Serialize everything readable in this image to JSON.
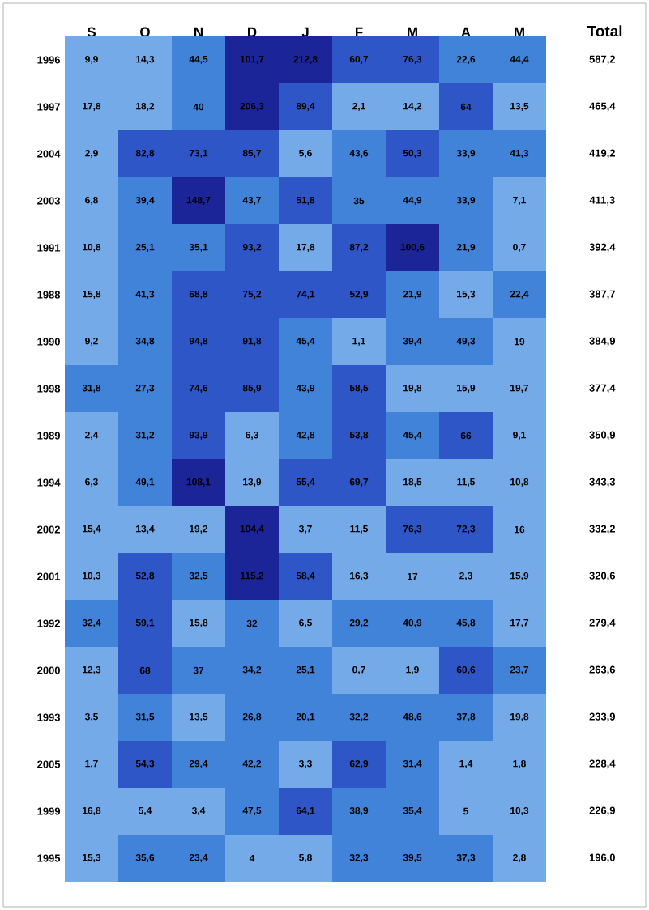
{
  "chart_data": {
    "type": "heatmap",
    "y2label": "Total",
    "categories": [
      "S",
      "O",
      "N",
      "D",
      "J",
      "F",
      "M",
      "A",
      "M"
    ],
    "y_categories": [
      "1996",
      "1997",
      "2004",
      "2003",
      "1991",
      "1988",
      "1990",
      "1998",
      "1989",
      "1994",
      "2002",
      "2001",
      "1992",
      "2000",
      "1993",
      "2005",
      "1999",
      "1995"
    ],
    "y2_categories": [
      "587,2",
      "465,4",
      "419,2",
      "411,3",
      "392,4",
      "387,7",
      "384,9",
      "377,4",
      "350,9",
      "343,3",
      "332,2",
      "320,6",
      "279,4",
      "263,6",
      "233,9",
      "228,4",
      "226,9",
      "196,0"
    ],
    "cells": [
      [
        9.9,
        14.3,
        44.5,
        101.7,
        212.8,
        60.7,
        76.3,
        22.6,
        44.4
      ],
      [
        17.8,
        18.2,
        40,
        206.3,
        89.4,
        2.1,
        14.2,
        64,
        13.5
      ],
      [
        2.9,
        82.8,
        73.1,
        85.7,
        5.6,
        43.6,
        50.3,
        33.9,
        41.3
      ],
      [
        6.8,
        39.4,
        148.7,
        43.7,
        51.8,
        35,
        44.9,
        33.9,
        7.1
      ],
      [
        10.8,
        25.1,
        35.1,
        93.2,
        17.8,
        87.2,
        100.6,
        21.9,
        0.7
      ],
      [
        15.8,
        41.3,
        68.8,
        75.2,
        74.1,
        52.9,
        21.9,
        15.3,
        22.4
      ],
      [
        9.2,
        34.8,
        94.8,
        91.8,
        45.4,
        1.1,
        39.4,
        49.3,
        19
      ],
      [
        31.8,
        27.3,
        74.6,
        85.9,
        43.9,
        58.5,
        19.8,
        15.9,
        19.7
      ],
      [
        2.4,
        31.2,
        93.9,
        6.3,
        42.8,
        53.8,
        45.4,
        66,
        9.1
      ],
      [
        6.3,
        49.1,
        108.1,
        13.9,
        55.4,
        69.7,
        18.5,
        11.5,
        10.8
      ],
      [
        15.4,
        13.4,
        19.2,
        104.4,
        3.7,
        11.5,
        76.3,
        72.3,
        16
      ],
      [
        10.3,
        52.8,
        32.5,
        115.2,
        58.4,
        16.3,
        17,
        2.3,
        15.9
      ],
      [
        32.4,
        59.1,
        15.8,
        32,
        6.5,
        29.2,
        40.9,
        45.8,
        17.7
      ],
      [
        12.3,
        68,
        37,
        34.2,
        25.1,
        0.7,
        1.9,
        60.6,
        23.7
      ],
      [
        3.5,
        31.5,
        13.5,
        26.8,
        20.1,
        32.2,
        48.6,
        37.8,
        19.8
      ],
      [
        1.7,
        54.3,
        29.4,
        42.2,
        3.3,
        62.9,
        31.4,
        1.4,
        1.8
      ],
      [
        16.8,
        5.4,
        3.4,
        47.5,
        64.1,
        38.9,
        35.4,
        5,
        10.3
      ],
      [
        15.3,
        35.6,
        23.4,
        4,
        5.8,
        32.3,
        39.5,
        37.3,
        2.8
      ]
    ],
    "cell_labels": [
      [
        "9,9",
        "14,3",
        "44,5",
        "101,7",
        "212,8",
        "60,7",
        "76,3",
        "22,6",
        "44,4"
      ],
      [
        "17,8",
        "18,2",
        "40",
        "206,3",
        "89,4",
        "2,1",
        "14,2",
        "64",
        "13,5"
      ],
      [
        "2,9",
        "82,8",
        "73,1",
        "85,7",
        "5,6",
        "43,6",
        "50,3",
        "33,9",
        "41,3"
      ],
      [
        "6,8",
        "39,4",
        "148,7",
        "43,7",
        "51,8",
        "35",
        "44,9",
        "33,9",
        "7,1"
      ],
      [
        "10,8",
        "25,1",
        "35,1",
        "93,2",
        "17,8",
        "87,2",
        "100,6",
        "21,9",
        "0,7"
      ],
      [
        "15,8",
        "41,3",
        "68,8",
        "75,2",
        "74,1",
        "52,9",
        "21,9",
        "15,3",
        "22,4"
      ],
      [
        "9,2",
        "34,8",
        "94,8",
        "91,8",
        "45,4",
        "1,1",
        "39,4",
        "49,3",
        "19"
      ],
      [
        "31,8",
        "27,3",
        "74,6",
        "85,9",
        "43,9",
        "58,5",
        "19,8",
        "15,9",
        "19,7"
      ],
      [
        "2,4",
        "31,2",
        "93,9",
        "6,3",
        "42,8",
        "53,8",
        "45,4",
        "66",
        "9,1"
      ],
      [
        "6,3",
        "49,1",
        "108,1",
        "13,9",
        "55,4",
        "69,7",
        "18,5",
        "11,5",
        "10,8"
      ],
      [
        "15,4",
        "13,4",
        "19,2",
        "104,4",
        "3,7",
        "11,5",
        "76,3",
        "72,3",
        "16"
      ],
      [
        "10,3",
        "52,8",
        "32,5",
        "115,2",
        "58,4",
        "16,3",
        "17",
        "2,3",
        "15,9"
      ],
      [
        "32,4",
        "59,1",
        "15,8",
        "32",
        "6,5",
        "29,2",
        "40,9",
        "45,8",
        "17,7"
      ],
      [
        "12,3",
        "68",
        "37",
        "34,2",
        "25,1",
        "0,7",
        "1,9",
        "60,6",
        "23,7"
      ],
      [
        "3,5",
        "31,5",
        "13,5",
        "26,8",
        "20,1",
        "32,2",
        "48,6",
        "37,8",
        "19,8"
      ],
      [
        "1,7",
        "54,3",
        "29,4",
        "42,2",
        "3,3",
        "62,9",
        "31,4",
        "1,4",
        "1,8"
      ],
      [
        "16,8",
        "5,4",
        "3,4",
        "47,5",
        "64,1",
        "38,9",
        "35,4",
        "5",
        "10,3"
      ],
      [
        "15,3",
        "35,6",
        "23,4",
        "4",
        "5,8",
        "32,3",
        "39,5",
        "37,3",
        "2,8"
      ]
    ]
  }
}
